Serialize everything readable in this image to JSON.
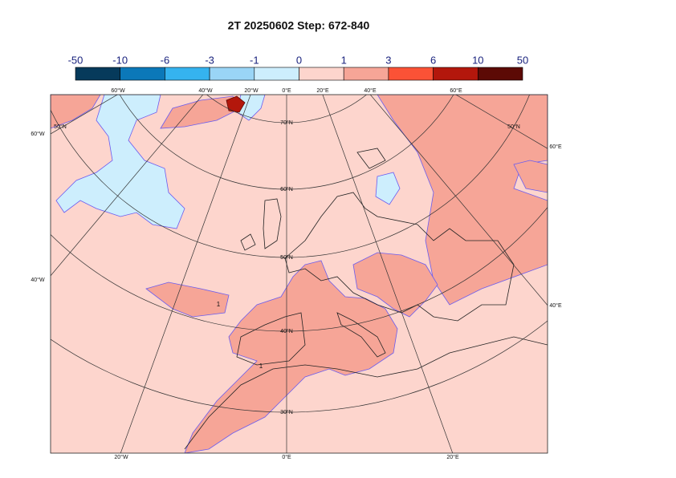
{
  "title": "2T 20250602 Step: 672-840",
  "colorbar": {
    "labels": [
      -50,
      -10,
      -6,
      -3,
      -1,
      0,
      1,
      3,
      6,
      10,
      50
    ],
    "colors": [
      "#063a5b",
      "#0b78b9",
      "#35b3ef",
      "#9ad5f6",
      "#cdeefd",
      "#fdd5cd",
      "#f6a597",
      "#fb5236",
      "#b3170c",
      "#5c0a05"
    ]
  },
  "map_labels": {
    "top": [
      "60°W",
      "40°W",
      "20°W",
      "0°E",
      "20°E",
      "40°E",
      "60°E"
    ],
    "left": [
      "60°W",
      "40°W"
    ],
    "right": [
      "60°E",
      "40°E"
    ],
    "bottom": [
      "20°W",
      "0°E",
      "20°E"
    ],
    "latitudes": [
      "50°N",
      "70°N",
      "60°N",
      "50°N",
      "40°N",
      "30°N",
      "50°N"
    ]
  },
  "contour_labels": [
    "1",
    "1"
  ]
}
